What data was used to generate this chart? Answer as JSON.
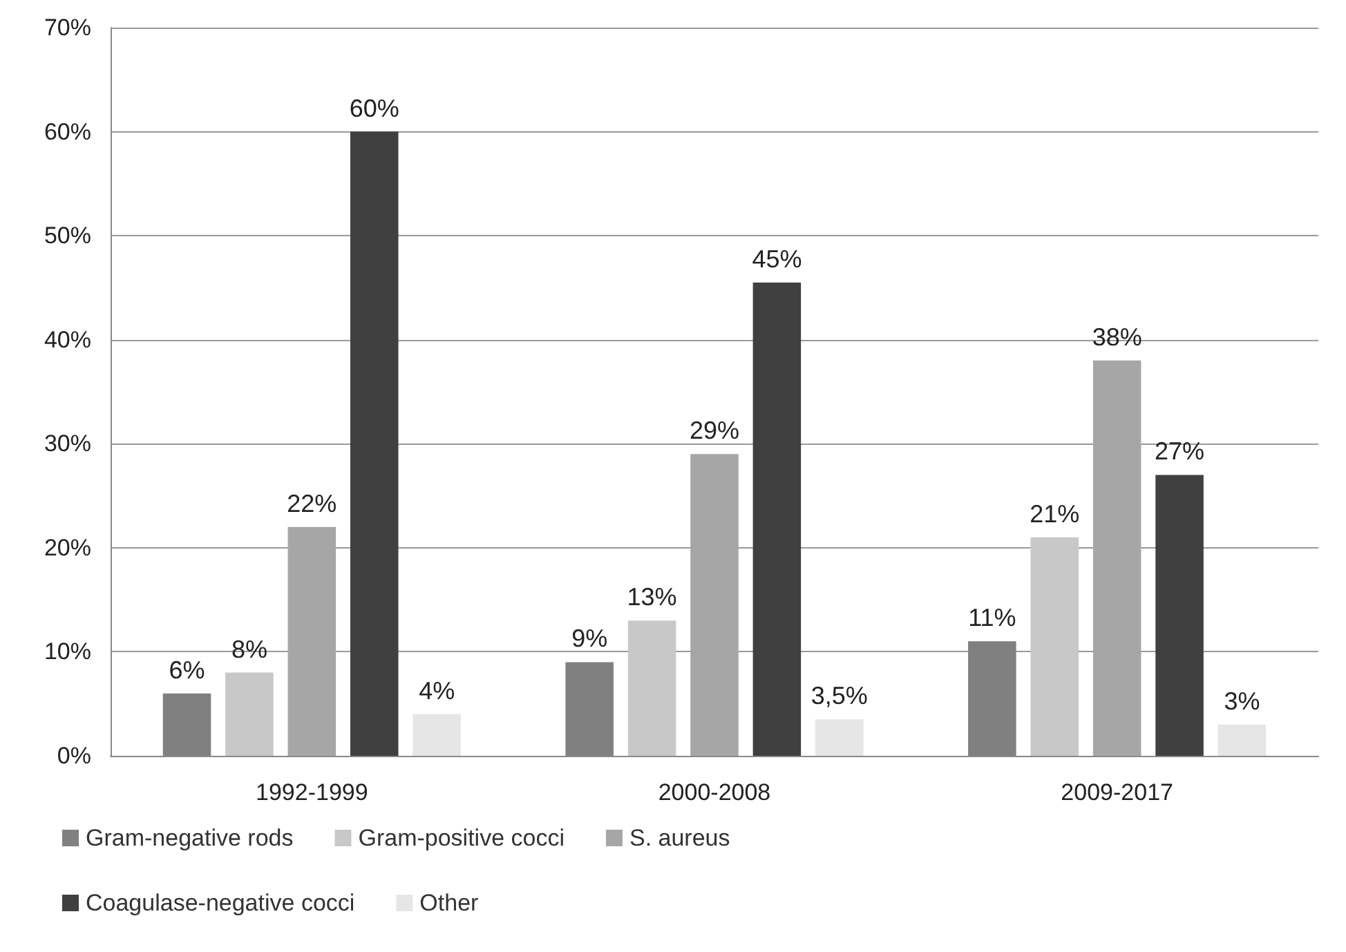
{
  "chart_data": {
    "type": "bar",
    "categories": [
      "1992-1999",
      "2000-2008",
      "2009-2017"
    ],
    "series": [
      {
        "name": "Gram-negative rods",
        "color": "#808080",
        "values": [
          6,
          9,
          11
        ],
        "value_labels": [
          "6%",
          "9%",
          "11%"
        ]
      },
      {
        "name": "Gram-positive cocci",
        "color": "#c8c8c8",
        "values": [
          8,
          13,
          21
        ],
        "value_labels": [
          "8%",
          "13%",
          "21%"
        ]
      },
      {
        "name": "S. aureus",
        "color": "#a6a6a6",
        "values": [
          22,
          29,
          38
        ],
        "value_labels": [
          "22%",
          "29%",
          "38%"
        ]
      },
      {
        "name": "Coagulase-negative cocci",
        "color": "#404040",
        "values": [
          60,
          45.5,
          27
        ],
        "value_labels": [
          "60%",
          "45%",
          "27%"
        ]
      },
      {
        "name": "Other",
        "color": "#e6e6e6",
        "values": [
          4,
          3.5,
          3
        ],
        "value_labels": [
          "4%",
          "3,5%",
          "3%"
        ]
      }
    ],
    "ylim": [
      0,
      70
    ],
    "yticks": [
      {
        "value": 0,
        "label": "0%"
      },
      {
        "value": 10,
        "label": "10%"
      },
      {
        "value": 20,
        "label": "20%"
      },
      {
        "value": 30,
        "label": "30%"
      },
      {
        "value": 40,
        "label": "40%"
      },
      {
        "value": 50,
        "label": "50%"
      },
      {
        "value": 60,
        "label": "60%"
      },
      {
        "value": 70,
        "label": "70%"
      }
    ],
    "grid": "y",
    "legend": "bottom left"
  }
}
